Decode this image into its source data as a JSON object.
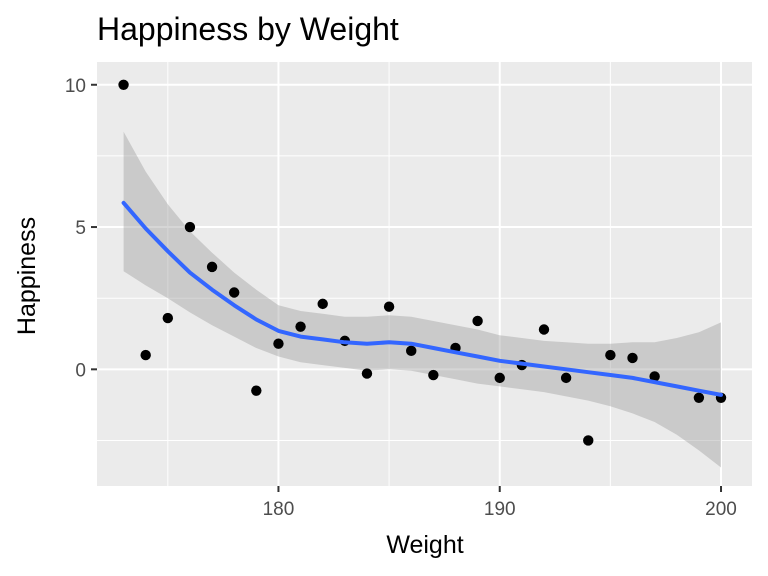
{
  "chart_data": {
    "type": "scatter",
    "title": "Happiness by Weight",
    "xlabel": "Weight",
    "ylabel": "Happiness",
    "xlim": [
      171.8,
      201.4
    ],
    "ylim": [
      -4.1,
      10.8
    ],
    "x_ticks": [
      180,
      190,
      200
    ],
    "y_ticks": [
      0,
      5,
      10
    ],
    "x_tick_labels": [
      "180",
      "190",
      "200"
    ],
    "y_tick_labels": [
      "0",
      "5",
      "10"
    ],
    "grid": true,
    "legend": "none",
    "colors": {
      "panel": "#ebebeb",
      "grid": "#ffffff",
      "points": "#000000",
      "smooth_line": "#3366ff",
      "ribbon": "#999999"
    },
    "points": [
      {
        "x": 173,
        "y": 10.0
      },
      {
        "x": 174,
        "y": 0.5
      },
      {
        "x": 175,
        "y": 1.8
      },
      {
        "x": 176,
        "y": 5.0
      },
      {
        "x": 177,
        "y": 3.6
      },
      {
        "x": 178,
        "y": 2.7
      },
      {
        "x": 179,
        "y": -0.75
      },
      {
        "x": 180,
        "y": 0.9
      },
      {
        "x": 181,
        "y": 1.5
      },
      {
        "x": 182,
        "y": 2.3
      },
      {
        "x": 183,
        "y": 1.0
      },
      {
        "x": 184,
        "y": -0.15
      },
      {
        "x": 185,
        "y": 2.2
      },
      {
        "x": 186,
        "y": 0.65
      },
      {
        "x": 187,
        "y": -0.2
      },
      {
        "x": 188,
        "y": 0.75
      },
      {
        "x": 189,
        "y": 1.7
      },
      {
        "x": 190,
        "y": -0.3
      },
      {
        "x": 191,
        "y": 0.15
      },
      {
        "x": 192,
        "y": 1.4
      },
      {
        "x": 193,
        "y": -0.3
      },
      {
        "x": 194,
        "y": -2.5
      },
      {
        "x": 195,
        "y": 0.5
      },
      {
        "x": 196,
        "y": 0.4
      },
      {
        "x": 197,
        "y": -0.25
      },
      {
        "x": 199,
        "y": -1.0
      },
      {
        "x": 200,
        "y": -1.0
      }
    ],
    "smooth": {
      "x": [
        173,
        174,
        175,
        176,
        177,
        178,
        179,
        180,
        181,
        182,
        183,
        184,
        185,
        186,
        187,
        188,
        189,
        190,
        191,
        192,
        193,
        194,
        195,
        196,
        197,
        198,
        199,
        200
      ],
      "y": [
        5.85,
        4.95,
        4.15,
        3.4,
        2.8,
        2.25,
        1.75,
        1.35,
        1.15,
        1.05,
        0.95,
        0.9,
        0.95,
        0.9,
        0.75,
        0.6,
        0.45,
        0.3,
        0.2,
        0.1,
        0.0,
        -0.1,
        -0.2,
        -0.3,
        -0.45,
        -0.6,
        -0.75,
        -0.9
      ],
      "lower": [
        3.45,
        2.95,
        2.5,
        2.0,
        1.55,
        1.15,
        0.75,
        0.45,
        0.25,
        0.15,
        0.05,
        -0.05,
        0.0,
        -0.05,
        -0.2,
        -0.35,
        -0.5,
        -0.6,
        -0.7,
        -0.8,
        -0.95,
        -1.1,
        -1.3,
        -1.55,
        -1.85,
        -2.3,
        -2.85,
        -3.45
      ],
      "upper": [
        8.35,
        6.95,
        5.8,
        4.85,
        4.1,
        3.4,
        2.8,
        2.25,
        2.05,
        1.95,
        1.85,
        1.85,
        1.9,
        1.85,
        1.7,
        1.55,
        1.4,
        1.2,
        1.1,
        1.0,
        0.95,
        0.9,
        0.9,
        0.95,
        0.95,
        1.1,
        1.3,
        1.65
      ]
    }
  }
}
